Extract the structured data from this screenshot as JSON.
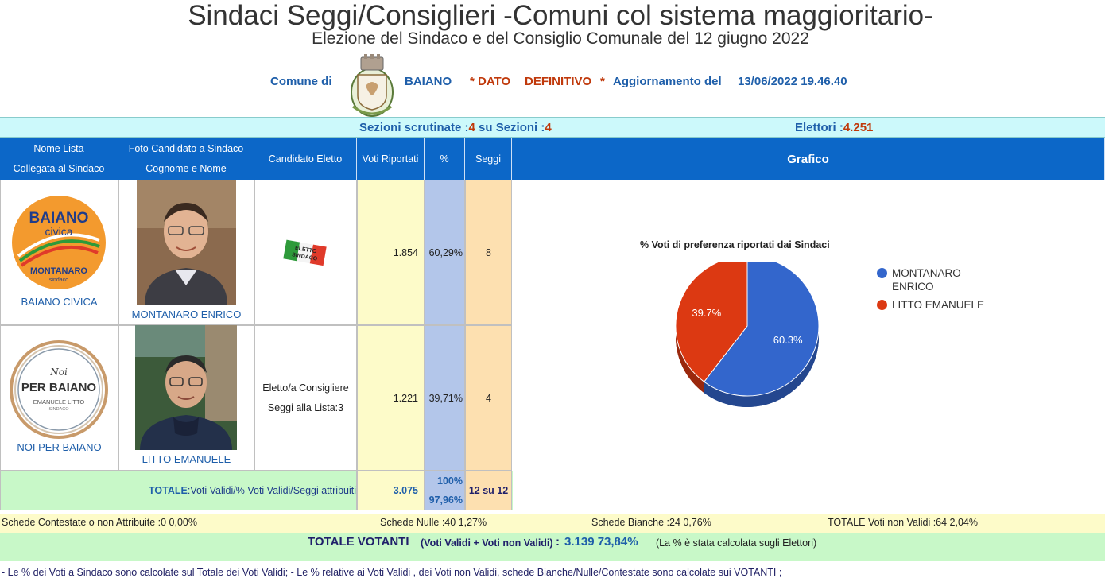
{
  "header": {
    "title": "Sindaci Seggi/Consiglieri -Comuni col sistema maggioritario-",
    "subtitle": "Elezione del Sindaco e del Consiglio Comunale del 12 giugno 2022"
  },
  "comune": {
    "label": "Comune di",
    "name": "BAIANO",
    "dato_prefix": "* DATO",
    "dato_value": "DEFINITIVO",
    "dato_suffix": "*",
    "update_label": "Aggiornamento del",
    "update_value": "13/06/2022 19.46.40"
  },
  "scrutinio": {
    "sezioni_label": "Sezioni scrutinate :",
    "sezioni_value": "4",
    "su_label": " su Sezioni :",
    "su_value": "4",
    "elettori_label": "Elettori :",
    "elettori_value": "4.251"
  },
  "table_headers": {
    "lista_1": "Nome Lista",
    "lista_2": "Collegata al Sindaco",
    "foto_1": "Foto Candidato a Sindaco",
    "foto_2": "Cognome e Nome",
    "eletto": "Candidato Eletto",
    "voti": "Voti Riportati",
    "pct": "%",
    "seggi": "Seggi",
    "grafico": "Grafico"
  },
  "rows": [
    {
      "lista": "BAIANO CIVICA",
      "logo_line1": "BAIANO",
      "logo_line2": "civica",
      "logo_line3": "MONTANARO",
      "logo_line4": "sindaco",
      "candidato": "MONTANARO ENRICO",
      "eletto_badge": "ELETTO SINDACO",
      "eletto_text1": "",
      "eletto_text2": "",
      "voti": "1.854",
      "pct": "60,29%",
      "seggi": "8"
    },
    {
      "lista": "NOI PER BAIANO",
      "logo_line1": "Noi",
      "logo_line2": "PER BAIANO",
      "logo_line3": "EMANUELE LITTO",
      "logo_line4": "SINDACO",
      "candidato": "LITTO EMANUELE",
      "eletto_badge": "",
      "eletto_text1": "Eletto/a Consigliere",
      "eletto_text2": "Seggi alla Lista:3",
      "voti": "1.221",
      "pct": "39,71%",
      "seggi": "4"
    }
  ],
  "totale": {
    "label_bold": "TOTALE",
    "label_rest": ":Voti Validi/% Voti Validi/Seggi attribuiti",
    "voti": "3.075",
    "pct1": "100%",
    "pct2": "97,96%",
    "seggi": "12 su 12"
  },
  "chart_data": {
    "type": "pie",
    "title": "% Voti di preferenza riportati dai Sindaci",
    "categories": [
      "MONTANARO ENRICO",
      "LITTO EMANUELE"
    ],
    "values": [
      60.3,
      39.7
    ],
    "labels": [
      "60.3%",
      "39.7%"
    ],
    "colors": [
      "#3366cc",
      "#dc3912"
    ],
    "legend_position": "right"
  },
  "schede": {
    "contestate": "Schede Contestate o non Attribuite :0   0,00%",
    "nulle": "Schede Nulle :40   1,27%",
    "bianche": "Schede Bianche :24   0,76%",
    "non_validi": "TOTALE Voti non Validi :64   2,04%"
  },
  "votanti": {
    "label": "TOTALE VOTANTI",
    "sub": "(Voti Validi + Voti non Validi)",
    "colon": ":",
    "value": "3.139  73,84%",
    "note": "(La % è stata calcolata sugli Elettori)"
  },
  "footnote": "- Le % dei Voti a Sindaco sono calcolate sul Totale dei Voti Validi; - Le % relative ai Voti Validi , dei Voti non Validi, schede Bianche/Nulle/Contestate sono calcolate sui VOTANTI ;"
}
